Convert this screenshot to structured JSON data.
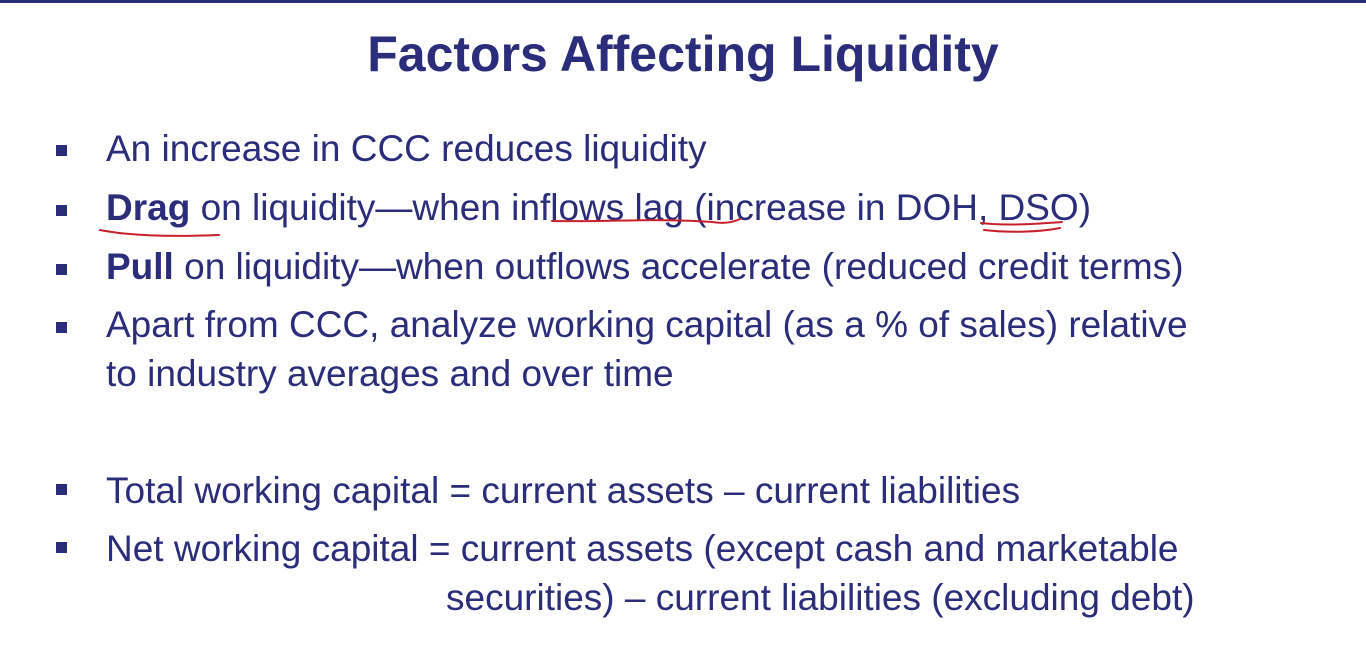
{
  "slide": {
    "title": "Factors Affecting Liquidity",
    "bullets": [
      {
        "text": "An increase in CCC reduces liquidity"
      },
      {
        "bold": "Drag",
        "pre": " on liquidity—when ",
        "u1": "inflows lag",
        "mid": " (increase in ",
        "u2": "DOH",
        "post": ", DSO)"
      },
      {
        "bold": "Pull",
        "rest": " on liquidity—when outflows accelerate (reduced credit terms)"
      },
      {
        "line1": "Apart from CCC, analyze working capital (as a % of sales) relative",
        "line2": "to industry averages and over time"
      },
      {
        "text": "Total working capital = current assets – current liabilities"
      },
      {
        "line1": "Net working capital = current assets (except cash and marketable",
        "line2": "securities) – current liabilities (excluding debt)"
      }
    ]
  },
  "colors": {
    "text": "#2b2c7a",
    "annotation_ink": "#c8202a"
  }
}
